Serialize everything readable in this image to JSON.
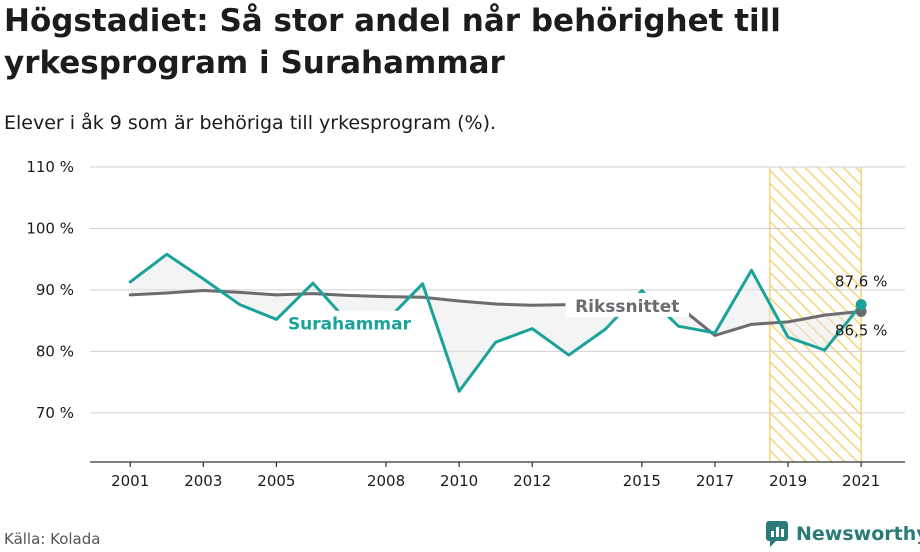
{
  "title": "Högstadiet: Så stor andel når behörighet till yrkesprogram i Surahammar",
  "subtitle": "Elever i åk 9 som är behöriga till yrkesprogram (%).",
  "source": "Källa: Kolada",
  "brand": "Newsworthy",
  "colors": {
    "surahammar": "#1aa39a",
    "riket": "#6b6b70",
    "highlight": "#f5d47a",
    "grid": "#d0d0d0",
    "brand": "#2a7a78"
  },
  "chart_data": {
    "type": "line",
    "xlim": [
      1999.9,
      2022.2
    ],
    "ylim": [
      62,
      110
    ],
    "y_ticks": [
      70,
      80,
      90,
      100,
      110
    ],
    "y_tick_labels": [
      "70 %",
      "80 %",
      "90 %",
      "100 %",
      "110 %"
    ],
    "x_ticks": [
      2001,
      2003,
      2005,
      2008,
      2010,
      2012,
      2015,
      2017,
      2019,
      2021
    ],
    "x_tick_labels": [
      "2001",
      "2003",
      "2005",
      "2008",
      "2010",
      "2012",
      "2015",
      "2017",
      "2019",
      "2021"
    ],
    "highlight_range": [
      2018.5,
      2021
    ],
    "series": [
      {
        "name": "Surahammar",
        "x": [
          2001,
          2002,
          2003,
          2004,
          2005,
          2006,
          2007,
          2008,
          2009,
          2010,
          2011,
          2012,
          2013,
          2014,
          2015,
          2016,
          2017,
          2018,
          2019,
          2020,
          2021
        ],
        "values": [
          91.3,
          95.8,
          91.8,
          87.6,
          85.2,
          91.1,
          84.5,
          84.9,
          91.0,
          73.5,
          81.5,
          83.7,
          79.4,
          83.6,
          89.9,
          84.1,
          83.0,
          93.2,
          82.3,
          80.2,
          87.6
        ]
      },
      {
        "name": "Rikssnittet",
        "x": [
          2001,
          2002,
          2003,
          2004,
          2005,
          2006,
          2007,
          2008,
          2009,
          2010,
          2011,
          2012,
          2013,
          2014,
          2015,
          2016,
          2017,
          2018,
          2019,
          2020,
          2021
        ],
        "values": [
          89.2,
          89.5,
          89.9,
          89.6,
          89.2,
          89.4,
          89.1,
          88.9,
          88.8,
          88.2,
          87.7,
          87.5,
          87.6,
          87.5,
          87.4,
          87.4,
          82.6,
          84.4,
          84.8,
          85.9,
          86.5
        ]
      }
    ],
    "series_labels": [
      {
        "text": "Surahammar",
        "x": 2007.0,
        "y": 84.5
      },
      {
        "text": "Rikssnittet",
        "x": 2014.6,
        "y": 87.4
      }
    ],
    "end_labels": [
      {
        "text": "87,6 %",
        "x": 2021,
        "y": 87.6
      },
      {
        "text": "86,5 %",
        "x": 2021,
        "y": 86.5
      }
    ]
  }
}
